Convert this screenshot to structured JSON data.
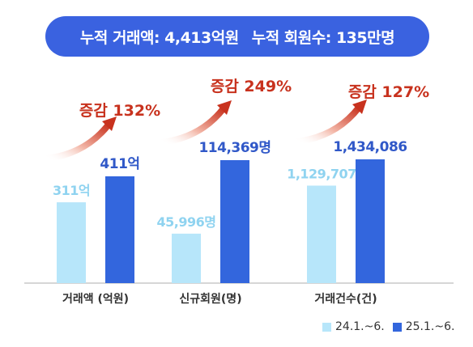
{
  "banner": {
    "cumulative_volume": "누적 거래액: 4,413억원",
    "cumulative_members": "누적 회원수: 135만명"
  },
  "colors": {
    "prev": "#b7e6fa",
    "curr": "#3366dd",
    "prev_label": "#8fd3f0",
    "curr_label": "#3058c8",
    "increase": "#c8321e",
    "axis": "#c8c8c8",
    "category_label": "#333333"
  },
  "chart_data": {
    "type": "bar",
    "categories": [
      "거래액 (억원)",
      "신규회원(명)",
      "거래건수(건)"
    ],
    "series": [
      {
        "name": "24.1.~6.",
        "values": [
          311,
          45996,
          1129707
        ],
        "labels": [
          "311억",
          "45,996명",
          "1,129,707"
        ]
      },
      {
        "name": "25.1.~6.",
        "values": [
          411,
          114369,
          1434086
        ],
        "labels": [
          "411억",
          "114,369명",
          "1,434,086"
        ]
      }
    ],
    "annotations": [
      "증감 132%",
      "증감 249%",
      "증감 127%"
    ],
    "legend_position": "bottom-right",
    "grid": false
  }
}
